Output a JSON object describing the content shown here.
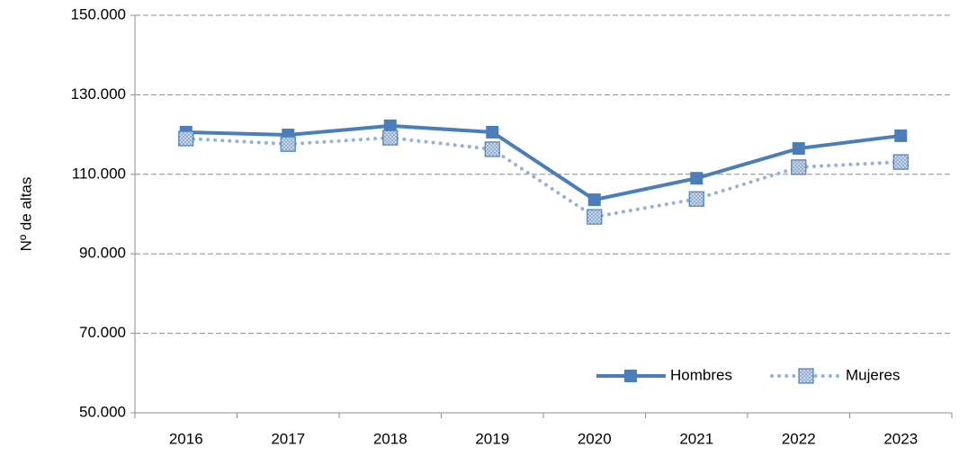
{
  "chart_data": {
    "type": "line",
    "y_label": "Nº de altas",
    "categories": [
      "2016",
      "2017",
      "2018",
      "2019",
      "2020",
      "2021",
      "2022",
      "2023"
    ],
    "series": [
      {
        "name": "Hombres",
        "color": "#4a7ebb",
        "style": "solid",
        "values": [
          120600,
          119900,
          122200,
          120600,
          103600,
          109000,
          116500,
          119700
        ]
      },
      {
        "name": "Mujeres",
        "color": "#95b3d7",
        "style": "dotted",
        "values": [
          119000,
          117600,
          119200,
          116300,
          99300,
          103800,
          111800,
          113100
        ]
      }
    ],
    "ylim": [
      50000,
      150000
    ],
    "yticks": [
      {
        "value": 50000,
        "label": "50.000"
      },
      {
        "value": 70000,
        "label": "70.000"
      },
      {
        "value": 90000,
        "label": "90.000"
      },
      {
        "value": 110000,
        "label": "110.000"
      },
      {
        "value": 130000,
        "label": "130.000"
      },
      {
        "value": 150000,
        "label": "150.000"
      }
    ],
    "grid": true,
    "legend_position": "lower right"
  }
}
